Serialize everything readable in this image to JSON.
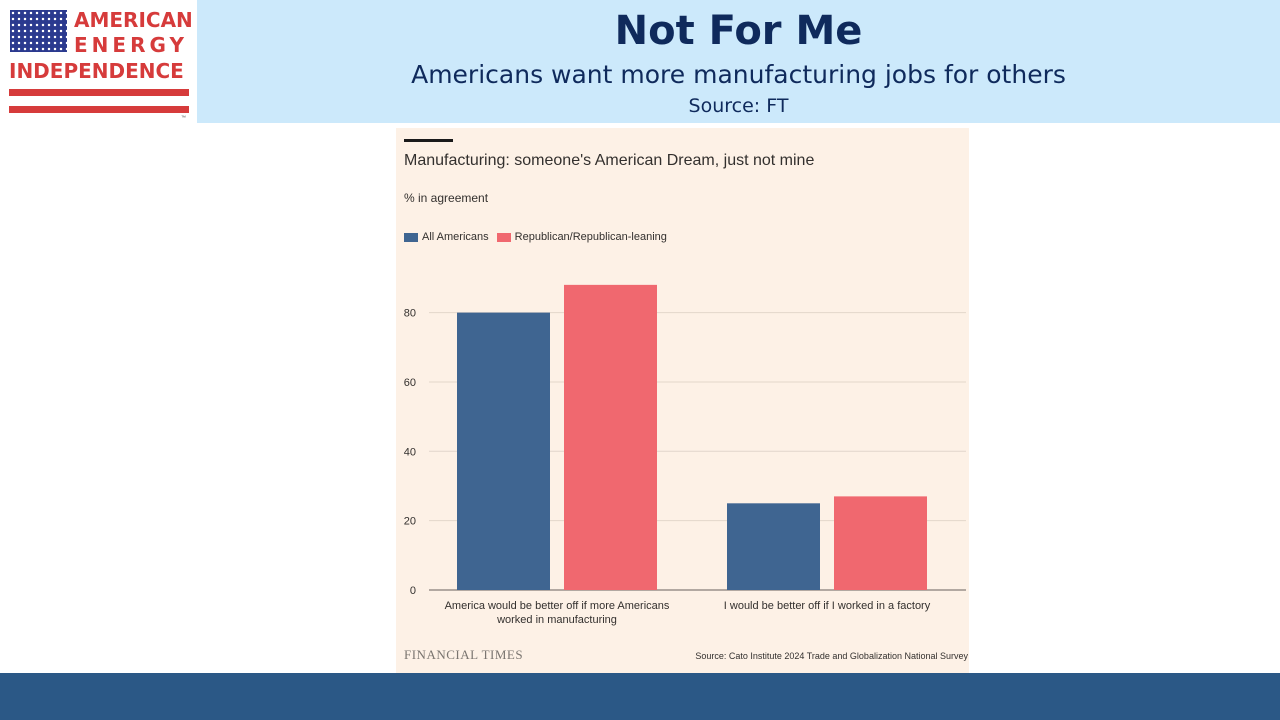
{
  "logo": {
    "line1": "AMERICAN",
    "line2": "ENERGY",
    "line3": "INDEPENDENCE",
    "tm": "™"
  },
  "header": {
    "title": "Not For Me",
    "subtitle": "Americans want more manufacturing jobs for others",
    "source": "Source: FT"
  },
  "colors": {
    "all_americans": "#3f6591",
    "republican": "#f0686f",
    "panel_bg": "#fdf1e6",
    "banner": "#cce9fb",
    "footer": "#2b5886"
  },
  "chart_data": {
    "type": "bar",
    "title": "Manufacturing: someone's American Dream, just not mine",
    "unit_label": "% in agreement",
    "categories": [
      [
        "America would be better off if more Americans",
        "worked in manufacturing"
      ],
      [
        "I would be better off if I worked in a factory"
      ]
    ],
    "series": [
      {
        "name": "All Americans",
        "color": "#3f6591",
        "values": [
          80,
          25
        ]
      },
      {
        "name": "Republican/Republican-leaning",
        "color": "#f0686f",
        "values": [
          88,
          27
        ]
      }
    ],
    "yticks": [
      0,
      20,
      40,
      60,
      80
    ],
    "ylim": [
      0,
      92
    ],
    "grid": true,
    "legend_position": "top-left",
    "brand": "FINANCIAL TIMES",
    "source": "Source: Cato Institute 2024 Trade and Globalization National Survey"
  }
}
